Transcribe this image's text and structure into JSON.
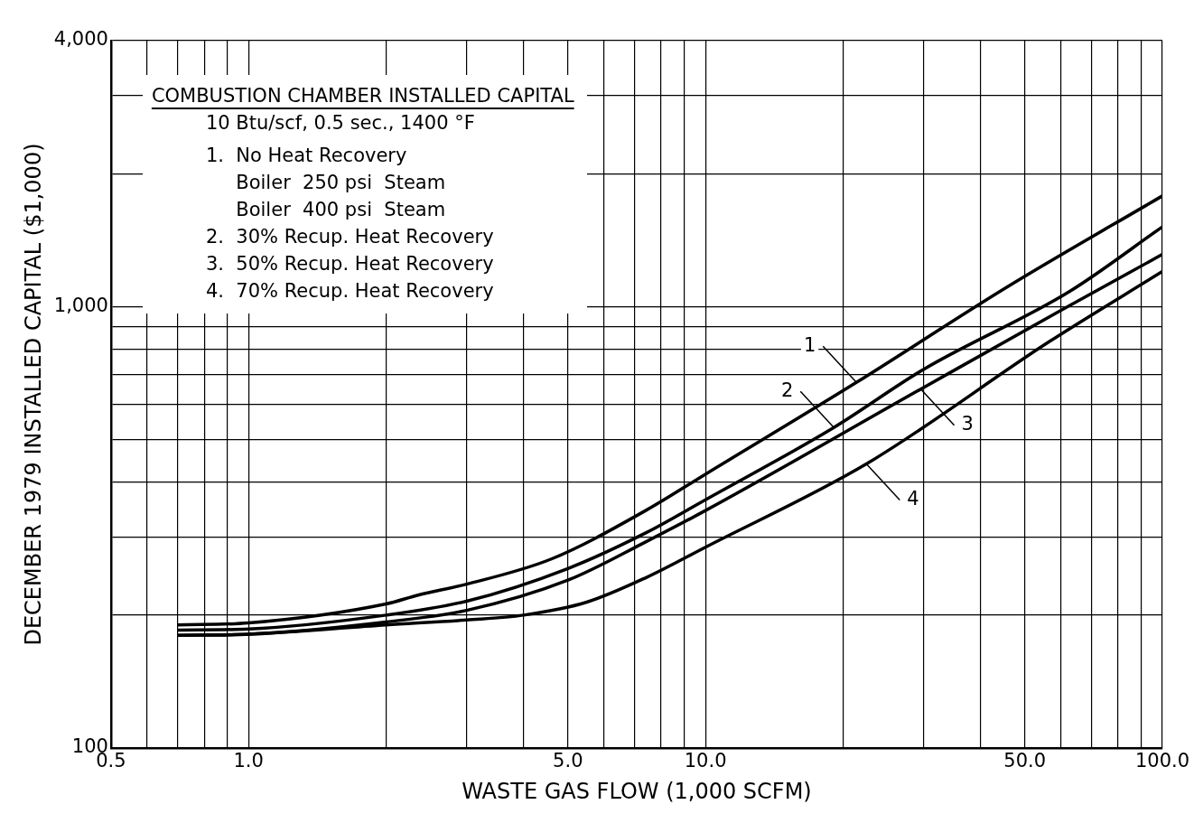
{
  "chart_data": {
    "type": "line",
    "title": "COMBUSTION CHAMBER INSTALLED CAPITAL",
    "subtitle": "10 Btu/scf, 0.5 sec., 1400 °F",
    "xlabel": "WASTE GAS FLOW (1,000 SCFM)",
    "ylabel": "DECEMBER 1979 INSTALLED CAPITAL ($1,000)",
    "log": "xy",
    "grid": true,
    "legend": false,
    "marker": "none",
    "line_style": "solid",
    "xlim": [
      0.5,
      100
    ],
    "ylim": [
      100,
      4000
    ],
    "xticks": [
      0.5,
      {
        "value": 0.6,
        "label": null
      },
      {
        "value": 0.7,
        "label": null
      },
      {
        "value": 0.8,
        "label": null
      },
      {
        "value": 0.9,
        "label": null
      },
      {
        "value": 1,
        "label": "1.0"
      },
      {
        "value": 2,
        "label": null
      },
      {
        "value": 3,
        "label": null
      },
      {
        "value": 4,
        "label": null
      },
      {
        "value": 5,
        "label": "5.0"
      },
      {
        "value": 6,
        "label": null
      },
      {
        "value": 7,
        "label": null
      },
      {
        "value": 8,
        "label": null
      },
      {
        "value": 9,
        "label": null
      },
      {
        "value": 10,
        "label": "10.0"
      },
      {
        "value": 20,
        "label": null
      },
      {
        "value": 30,
        "label": null
      },
      {
        "value": 40,
        "label": null
      },
      {
        "value": 50,
        "label": "50.0"
      },
      {
        "value": 60,
        "label": null
      },
      {
        "value": 70,
        "label": null
      },
      {
        "value": 80,
        "label": null
      },
      {
        "value": 90,
        "label": null
      },
      {
        "value": 100,
        "label": "100.0"
      }
    ],
    "yticks": [
      100,
      {
        "value": 200,
        "label": null
      },
      {
        "value": 300,
        "label": null
      },
      {
        "value": 400,
        "label": null
      },
      {
        "value": 500,
        "label": null
      },
      {
        "value": 600,
        "label": null
      },
      {
        "value": 700,
        "label": null
      },
      {
        "value": 800,
        "label": null
      },
      {
        "value": 900,
        "label": null
      },
      {
        "value": 1000,
        "label": "1,000"
      },
      {
        "value": 2000,
        "label": null
      },
      {
        "value": 3000,
        "label": null
      },
      {
        "value": 4000,
        "label": "4,000"
      }
    ],
    "series": [
      {
        "color": "#000000",
        "x": [
          0.7,
          1,
          2,
          2.35,
          3,
          4.6,
          7.4,
          10,
          21.4,
          45.8,
          100
        ],
        "values": [
          190,
          192,
          212,
          222,
          235,
          268,
          345,
          417,
          673,
          1108,
          1780
        ]
      },
      {
        "color": "#000000",
        "x": [
          0.7,
          1,
          2,
          3,
          5,
          7.4,
          10,
          19.1,
          30,
          62.7,
          100
        ],
        "values": [
          185,
          186,
          200,
          215,
          255,
          307,
          365,
          532,
          720,
          1082,
          1515
        ]
      },
      {
        "color": "#000000",
        "x": [
          0.7,
          1,
          2,
          3,
          5,
          7.4,
          10,
          29.6,
          60,
          100
        ],
        "values": [
          180,
          181,
          193,
          205,
          240,
          293,
          345,
          650,
          980,
          1312
        ]
      },
      {
        "color": "#000000",
        "x": [
          0.7,
          1,
          2,
          3,
          4,
          5.5,
          7.4,
          10,
          22.5,
          56.6,
          100
        ],
        "values": [
          180,
          181,
          190,
          195,
          200,
          214,
          243,
          285,
          440,
          833,
          1200
        ]
      }
    ],
    "annotations": [
      "1.  No Heat Recovery",
      "     Boiler  250 psi  Steam",
      "     Boiler  400 psi  Steam",
      "2.  30% Recup. Heat Recovery",
      "3.  50% Recup. Heat Recovery",
      "4.  70% Recup. Heat Recovery",
      {
        "text": "1",
        "x": 21.4,
        "y": 673
      },
      {
        "text": "2",
        "x": 19.1,
        "y": 532
      },
      {
        "text": "3",
        "x": 29.6,
        "y": 650
      },
      {
        "text": "4",
        "x": 22.5,
        "y": 440
      }
    ]
  }
}
